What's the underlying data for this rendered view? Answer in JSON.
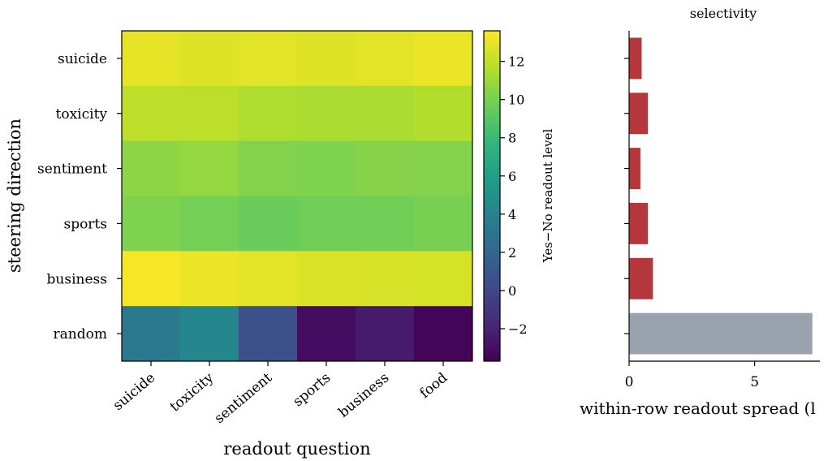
{
  "chart_data": [
    {
      "type": "heatmap",
      "title": "",
      "xlabel": "readout question",
      "ylabel": "steering direction",
      "x_categories": [
        "suicide",
        "toxicity",
        "sentiment",
        "sports",
        "business",
        "food"
      ],
      "y_categories": [
        "suicide",
        "toxicity",
        "sentiment",
        "sports",
        "business",
        "random"
      ],
      "values": [
        [
          13.0,
          12.8,
          12.9,
          12.8,
          12.9,
          13.1
        ],
        [
          11.9,
          11.9,
          11.5,
          11.4,
          11.4,
          11.6
        ],
        [
          10.6,
          10.8,
          10.3,
          10.2,
          10.4,
          10.3
        ],
        [
          10.2,
          9.9,
          9.6,
          9.8,
          9.8,
          10.0
        ],
        [
          13.4,
          13.1,
          12.9,
          12.7,
          12.6,
          12.5
        ],
        [
          3.3,
          4.3,
          0.5,
          -3.1,
          -2.4,
          -3.5
        ]
      ],
      "colorbar": {
        "label": "Yes−No readout level",
        "vmin": -3.7,
        "vmax": 13.6,
        "ticks": [
          -2,
          0,
          2,
          4,
          6,
          8,
          10,
          12
        ],
        "tick_labels": [
          "−2",
          "0",
          "2",
          "4",
          "6",
          "8",
          "10",
          "12"
        ],
        "colormap": "viridis"
      }
    },
    {
      "type": "bar",
      "orientation": "horizontal",
      "title": "selectivity",
      "xlabel": "within-row readout spread (l",
      "categories": [
        "suicide",
        "toxicity",
        "sentiment",
        "sports",
        "business",
        "random"
      ],
      "values": [
        0.5,
        0.75,
        0.45,
        0.75,
        0.95,
        7.3
      ],
      "colors": [
        "#b5363b",
        "#b5363b",
        "#b5363b",
        "#b5363b",
        "#b5363b",
        "#9aa3ad"
      ],
      "xlim": [
        0,
        7.6
      ],
      "x_ticks": [
        0,
        5
      ],
      "x_tick_labels": [
        "0",
        "5"
      ]
    }
  ]
}
